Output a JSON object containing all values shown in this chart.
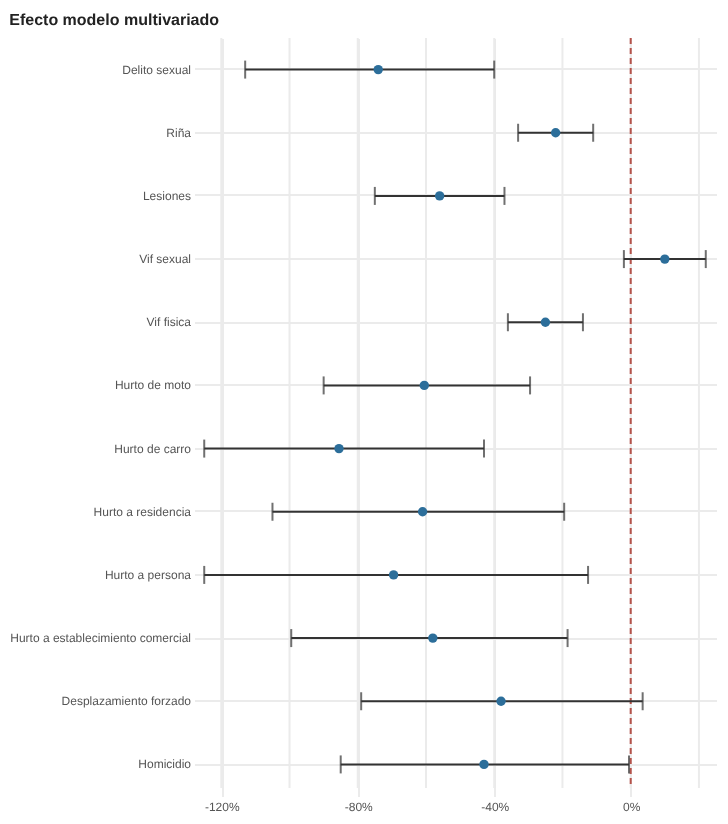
{
  "chart_data": {
    "type": "scatter",
    "orientation": "horizontal",
    "title": "Efecto modelo multivariado",
    "categories": [
      "Delito sexual",
      "Riña",
      "Lesiones",
      "Vif sexual",
      "Vif fisica",
      "Hurto de moto",
      "Hurto de carro",
      "Hurto a residencia",
      "Hurto a persona",
      "Hurto a establecimiento comercial",
      "Desplazamiento forzado",
      "Homicidio"
    ],
    "values": [
      -74,
      -22,
      -56,
      10,
      -25,
      -60.5,
      -85.5,
      -61,
      -69.5,
      -58,
      -38,
      -43
    ],
    "errors": [
      [
        -113,
        -40
      ],
      [
        -33,
        -11
      ],
      [
        -75,
        -37
      ],
      [
        -2,
        22
      ],
      [
        -36,
        -14
      ],
      [
        -90,
        -29.5
      ],
      [
        -125,
        -43
      ],
      [
        -105,
        -19.5
      ],
      [
        -125,
        -12.5
      ],
      [
        -99.5,
        -18.5
      ],
      [
        -79,
        3.5
      ],
      [
        -85,
        -0.5
      ]
    ],
    "color": "#2c6e9a",
    "xlim": [
      -128,
      25
    ],
    "xticks": [
      {
        "value": -120,
        "label": "-120%"
      },
      {
        "value": -100,
        "label": null
      },
      {
        "value": -80,
        "label": "-80%"
      },
      {
        "value": -60,
        "label": null
      },
      {
        "value": -40,
        "label": "-40%"
      },
      {
        "value": -20,
        "label": null
      },
      {
        "value": 0,
        "label": "0%"
      },
      {
        "value": 20,
        "label": null
      }
    ],
    "ref_lines": [
      {
        "axis": "x",
        "value": 0,
        "color": "#b5524a",
        "line_style": "dashed"
      }
    ],
    "grid": true
  }
}
